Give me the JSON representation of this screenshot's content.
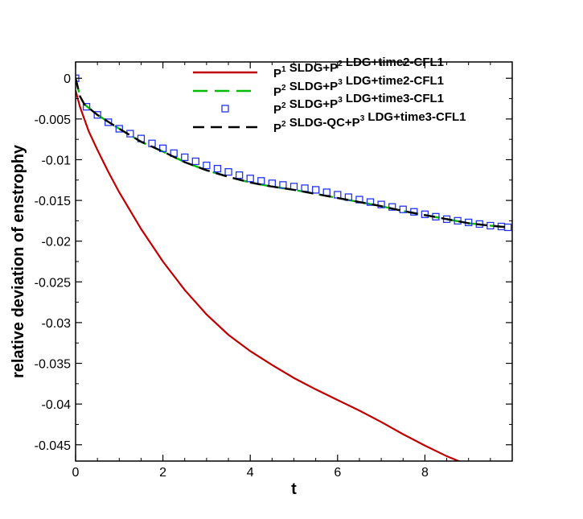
{
  "chart_data": {
    "type": "line",
    "title": "",
    "xlabel": "t",
    "ylabel": "relative deviation of enstrophy",
    "xlim": [
      0,
      10
    ],
    "ylim": [
      -0.047,
      0.002
    ],
    "xticks": [
      0,
      2,
      4,
      6,
      8
    ],
    "xtick_labels": [
      "0",
      "2",
      "4",
      "6",
      "8"
    ],
    "yticks": [
      0,
      -0.005,
      -0.01,
      -0.015,
      -0.02,
      -0.025,
      -0.03,
      -0.035,
      -0.04,
      -0.045
    ],
    "ytick_labels": [
      "0",
      "-0.005",
      "-0.01",
      "-0.015",
      "-0.02",
      "-0.025",
      "-0.03",
      "-0.035",
      "-0.04",
      "-0.045"
    ],
    "grid": false,
    "legend_position": "top-right",
    "series": [
      {
        "legend_parts": [
          [
            "P",
            "1"
          ],
          [
            " SLDG+P",
            "2"
          ],
          [
            " LDG+time2-CFL1",
            ""
          ]
        ],
        "style": "solid",
        "color": "#c00000",
        "x": [
          0,
          0.1,
          0.2,
          0.3,
          0.5,
          0.75,
          1.0,
          1.5,
          2.0,
          2.5,
          3.0,
          3.5,
          4.0,
          4.5,
          5.0,
          5.5,
          6.0,
          6.5,
          7.0,
          7.5,
          8.0,
          8.5,
          9.0,
          9.5,
          9.9
        ],
        "y": [
          -0.0015,
          -0.0035,
          -0.005,
          -0.0065,
          -0.0088,
          -0.0115,
          -0.014,
          -0.0185,
          -0.0225,
          -0.026,
          -0.029,
          -0.0315,
          -0.0335,
          -0.0352,
          -0.0368,
          -0.0382,
          -0.0395,
          -0.0408,
          -0.0422,
          -0.0437,
          -0.0451,
          -0.0464,
          -0.0475,
          -0.0482,
          -0.0488
        ]
      },
      {
        "legend_parts": [
          [
            "P",
            "2"
          ],
          [
            " SLDG+P",
            "3"
          ],
          [
            " LDG+time2-CFL1",
            ""
          ]
        ],
        "style": "dashed",
        "color": "#00bb00",
        "x": [
          0,
          0.1,
          0.2,
          0.5,
          1.0,
          1.5,
          2.0,
          2.5,
          3.0,
          3.5,
          4.0,
          4.5,
          5.0,
          5.5,
          6.0,
          6.5,
          7.0,
          7.5,
          8.0,
          8.5,
          9.0,
          9.5,
          9.9
        ],
        "y": [
          0,
          -0.0022,
          -0.0032,
          -0.0045,
          -0.0062,
          -0.0078,
          -0.009,
          -0.0103,
          -0.0113,
          -0.0121,
          -0.0128,
          -0.0133,
          -0.0137,
          -0.0142,
          -0.0147,
          -0.0152,
          -0.0157,
          -0.0163,
          -0.0168,
          -0.0173,
          -0.0178,
          -0.0181,
          -0.0183
        ]
      },
      {
        "legend_parts": [
          [
            "P",
            "2"
          ],
          [
            " SLDG+P",
            "3"
          ],
          [
            " LDG+time3-CFL1",
            ""
          ]
        ],
        "style": "markers",
        "color": "#2233ee",
        "x": [
          0,
          0.25,
          0.5,
          0.75,
          1.0,
          1.25,
          1.5,
          1.75,
          2.0,
          2.25,
          2.5,
          2.75,
          3.0,
          3.25,
          3.5,
          3.75,
          4.0,
          4.25,
          4.5,
          4.75,
          5.0,
          5.25,
          5.5,
          5.75,
          6.0,
          6.25,
          6.5,
          6.75,
          7.0,
          7.25,
          7.5,
          7.75,
          8.0,
          8.25,
          8.5,
          8.75,
          9.0,
          9.25,
          9.5,
          9.75,
          9.9
        ],
        "y": [
          0,
          -0.0035,
          -0.0045,
          -0.0054,
          -0.0062,
          -0.0068,
          -0.0074,
          -0.008,
          -0.0086,
          -0.0092,
          -0.0097,
          -0.0102,
          -0.0107,
          -0.0111,
          -0.0115,
          -0.0119,
          -0.0123,
          -0.0126,
          -0.0129,
          -0.0131,
          -0.0133,
          -0.0135,
          -0.0137,
          -0.014,
          -0.0143,
          -0.0146,
          -0.0149,
          -0.0152,
          -0.0155,
          -0.0158,
          -0.0161,
          -0.0164,
          -0.0167,
          -0.017,
          -0.0173,
          -0.0175,
          -0.0177,
          -0.0179,
          -0.0181,
          -0.0182,
          -0.0183
        ]
      },
      {
        "legend_parts": [
          [
            "P",
            "2"
          ],
          [
            " SLDG-QC+P",
            "3"
          ],
          [
            " LDG+time3-CFL1",
            ""
          ]
        ],
        "style": "dashed",
        "color": "#000000",
        "x": [
          0,
          0.1,
          0.2,
          0.5,
          1.0,
          1.5,
          2.0,
          2.5,
          3.0,
          3.5,
          4.0,
          4.5,
          5.0,
          5.5,
          6.0,
          6.5,
          7.0,
          7.5,
          8.0,
          8.5,
          9.0,
          9.5,
          9.9
        ],
        "y": [
          0,
          -0.0022,
          -0.0032,
          -0.0045,
          -0.0062,
          -0.0078,
          -0.009,
          -0.0103,
          -0.0113,
          -0.0121,
          -0.0128,
          -0.0133,
          -0.0137,
          -0.0142,
          -0.0147,
          -0.0152,
          -0.0157,
          -0.0163,
          -0.0168,
          -0.0173,
          -0.0178,
          -0.0181,
          -0.0183
        ]
      }
    ]
  }
}
